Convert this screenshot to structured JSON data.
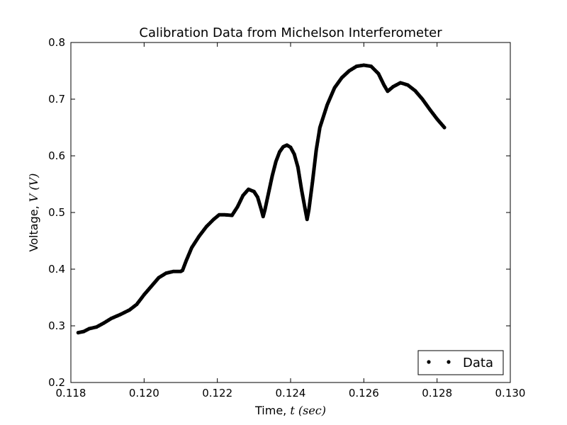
{
  "chart_data": {
    "type": "scatter",
    "title": "Calibration Data from Michelson Interferometer",
    "xlabel": "Time, ",
    "xlabel_math": "t (sec)",
    "ylabel": "Voltage, ",
    "ylabel_math": "V (V)",
    "xlim": [
      0.118,
      0.13
    ],
    "ylim": [
      0.2,
      0.8
    ],
    "xticks": [
      0.118,
      0.12,
      0.122,
      0.124,
      0.126,
      0.128,
      0.13
    ],
    "xtick_labels": [
      "0.118",
      "0.120",
      "0.122",
      "0.124",
      "0.126",
      "0.128",
      "0.130"
    ],
    "yticks": [
      0.2,
      0.3,
      0.4,
      0.5,
      0.6,
      0.7,
      0.8
    ],
    "ytick_labels": [
      "0.2",
      "0.3",
      "0.4",
      "0.5",
      "0.6",
      "0.7",
      "0.8"
    ],
    "grid": false,
    "legend": {
      "position": "lower-right",
      "entries": [
        "Data"
      ]
    },
    "marker_color": "#000000",
    "series": [
      {
        "name": "Data",
        "curve": [
          [
            0.1182,
            0.288
          ],
          [
            0.11835,
            0.29
          ],
          [
            0.1185,
            0.295
          ],
          [
            0.1187,
            0.298
          ],
          [
            0.1189,
            0.305
          ],
          [
            0.1191,
            0.313
          ],
          [
            0.11935,
            0.32
          ],
          [
            0.1196,
            0.328
          ],
          [
            0.1198,
            0.338
          ],
          [
            0.12,
            0.355
          ],
          [
            0.1202,
            0.37
          ],
          [
            0.1204,
            0.385
          ],
          [
            0.1206,
            0.393
          ],
          [
            0.1208,
            0.396
          ],
          [
            0.121,
            0.396
          ],
          [
            0.12105,
            0.398
          ],
          [
            0.12115,
            0.415
          ],
          [
            0.1213,
            0.438
          ],
          [
            0.1215,
            0.458
          ],
          [
            0.1217,
            0.475
          ],
          [
            0.1219,
            0.488
          ],
          [
            0.12205,
            0.496
          ],
          [
            0.1222,
            0.496
          ],
          [
            0.1224,
            0.495
          ],
          [
            0.12255,
            0.51
          ],
          [
            0.1227,
            0.53
          ],
          [
            0.12285,
            0.541
          ],
          [
            0.123,
            0.537
          ],
          [
            0.1231,
            0.527
          ],
          [
            0.1232,
            0.505
          ],
          [
            0.12325,
            0.493
          ],
          [
            0.1233,
            0.505
          ],
          [
            0.1234,
            0.535
          ],
          [
            0.1235,
            0.565
          ],
          [
            0.1236,
            0.59
          ],
          [
            0.1237,
            0.607
          ],
          [
            0.1238,
            0.616
          ],
          [
            0.1239,
            0.619
          ],
          [
            0.124,
            0.615
          ],
          [
            0.1241,
            0.603
          ],
          [
            0.1242,
            0.58
          ],
          [
            0.1243,
            0.54
          ],
          [
            0.1244,
            0.505
          ],
          [
            0.12445,
            0.488
          ],
          [
            0.1245,
            0.505
          ],
          [
            0.1246,
            0.555
          ],
          [
            0.1247,
            0.61
          ],
          [
            0.1248,
            0.65
          ],
          [
            0.125,
            0.69
          ],
          [
            0.1252,
            0.72
          ],
          [
            0.1254,
            0.738
          ],
          [
            0.1256,
            0.75
          ],
          [
            0.1258,
            0.758
          ],
          [
            0.126,
            0.76
          ],
          [
            0.1262,
            0.758
          ],
          [
            0.1264,
            0.745
          ],
          [
            0.12655,
            0.725
          ],
          [
            0.12665,
            0.714
          ],
          [
            0.1268,
            0.722
          ],
          [
            0.127,
            0.729
          ],
          [
            0.1272,
            0.725
          ],
          [
            0.1274,
            0.715
          ],
          [
            0.1276,
            0.7
          ],
          [
            0.1278,
            0.682
          ],
          [
            0.128,
            0.665
          ],
          [
            0.1282,
            0.65
          ]
        ]
      }
    ]
  }
}
